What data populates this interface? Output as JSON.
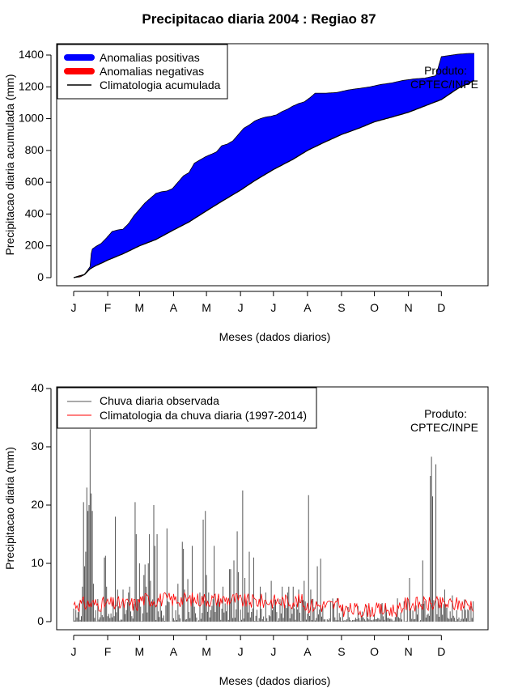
{
  "title": "Precipitacao diaria 2004 : Regiao 87",
  "chart_data": [
    {
      "type": "area",
      "ylabel": "Precipitacao diaria acumulada (mm)",
      "xlabel": "Meses (dados diarios)",
      "ylim": [
        0,
        1400
      ],
      "yticks": [
        0,
        200,
        400,
        600,
        800,
        1000,
        1200,
        1400
      ],
      "xticks": [
        "J",
        "F",
        "M",
        "A",
        "M",
        "J",
        "J",
        "A",
        "S",
        "O",
        "N",
        "D"
      ],
      "xtick_days": [
        0,
        31,
        60,
        91,
        121,
        152,
        182,
        213,
        244,
        274,
        305,
        335
      ],
      "legend": {
        "position": "top-left",
        "items": [
          "Anomalias positivas",
          "Anomalias negativas",
          "Climatologia acumulada"
        ]
      },
      "colors": {
        "positive": "#0000ff",
        "negative": "#ff0000",
        "clim": "#000000"
      },
      "annotation": [
        "Produto:",
        "CPTEC/INPE"
      ],
      "climatology_accumulated": {
        "days": [
          0,
          10,
          15,
          20,
          25,
          31,
          45,
          60,
          75,
          91,
          105,
          121,
          135,
          152,
          165,
          182,
          200,
          213,
          228,
          244,
          260,
          274,
          290,
          305,
          320,
          335,
          350,
          365
        ],
        "values": [
          0,
          20,
          55,
          75,
          90,
          110,
          150,
          200,
          240,
          300,
          350,
          420,
          480,
          550,
          610,
          680,
          745,
          800,
          850,
          900,
          940,
          980,
          1010,
          1040,
          1080,
          1120,
          1190,
          1240
        ]
      },
      "observed_accumulated": {
        "days": [
          0,
          6,
          9,
          12,
          15,
          16,
          17,
          20,
          25,
          30,
          35,
          40,
          45,
          50,
          55,
          60,
          65,
          70,
          75,
          80,
          85,
          90,
          95,
          100,
          105,
          110,
          115,
          120,
          125,
          130,
          135,
          140,
          145,
          150,
          155,
          160,
          165,
          170,
          175,
          180,
          185,
          190,
          195,
          200,
          205,
          210,
          215,
          220,
          225,
          230,
          240,
          250,
          260,
          270,
          280,
          290,
          300,
          310,
          320,
          330,
          335,
          340,
          345,
          350,
          360,
          365
        ],
        "values": [
          0,
          5,
          15,
          40,
          70,
          150,
          180,
          195,
          215,
          250,
          290,
          300,
          305,
          340,
          390,
          430,
          470,
          500,
          530,
          540,
          545,
          560,
          600,
          640,
          660,
          720,
          740,
          760,
          775,
          790,
          830,
          840,
          860,
          900,
          940,
          960,
          985,
          1000,
          1010,
          1015,
          1025,
          1045,
          1060,
          1080,
          1095,
          1105,
          1130,
          1160,
          1160,
          1160,
          1165,
          1180,
          1190,
          1200,
          1215,
          1225,
          1240,
          1250,
          1255,
          1270,
          1390,
          1395,
          1400,
          1405,
          1410,
          1410
        ]
      }
    },
    {
      "type": "bar",
      "ylabel": "Precipitacao diaria (mm)",
      "xlabel": "Meses (dados diarios)",
      "ylim": [
        0,
        40
      ],
      "yticks": [
        0,
        10,
        20,
        30,
        40
      ],
      "xticks": [
        "J",
        "F",
        "M",
        "A",
        "M",
        "J",
        "J",
        "A",
        "S",
        "O",
        "N",
        "D"
      ],
      "xtick_days": [
        0,
        31,
        60,
        91,
        121,
        152,
        182,
        213,
        244,
        274,
        305,
        335
      ],
      "legend": {
        "position": "top-left",
        "items": [
          "Chuva diaria observada",
          "Climatologia da chuva diaria (1997-2014)"
        ]
      },
      "colors": {
        "observed": "#555555",
        "clim": "#ff0000"
      },
      "annotation": [
        "Produto:",
        "CPTEC/INPE"
      ],
      "observed_daily_peaks": {
        "days": [
          8,
          9,
          10,
          11,
          12,
          13,
          14,
          15,
          16,
          17,
          18,
          28,
          29,
          30,
          38,
          40,
          45,
          50,
          51,
          56,
          57,
          60,
          64,
          65,
          66,
          68,
          69,
          70,
          73,
          74,
          76,
          85,
          95,
          99,
          100,
          101,
          104,
          108,
          115,
          118,
          120,
          121,
          123,
          128,
          136,
          142,
          143,
          146,
          149,
          150,
          154,
          156,
          160,
          164,
          170,
          175,
          180,
          190,
          195,
          196,
          200,
          205,
          210,
          214,
          216,
          222,
          225,
          240,
          250,
          270,
          280,
          295,
          306,
          318,
          325,
          326,
          327,
          330,
          338,
          345
        ],
        "values": [
          6,
          20.5,
          9.5,
          12,
          23,
          19,
          20,
          33,
          22,
          19,
          6.5,
          11,
          11.3,
          6,
          18,
          5.5,
          5.5,
          5,
          6,
          20.5,
          15,
          10,
          8,
          9.8,
          6,
          10,
          15,
          7,
          20,
          13,
          15,
          16,
          6.5,
          13.7,
          12.5,
          5.5,
          7.3,
          13,
          5,
          17.5,
          19,
          8,
          5,
          13,
          6,
          9,
          9,
          10.5,
          15.5,
          8.5,
          22.5,
          7.5,
          12,
          11,
          6,
          5,
          7,
          6,
          5,
          6,
          6,
          5.5,
          7,
          21.7,
          5.5,
          9.5,
          10.8,
          4,
          2.5,
          2,
          3,
          4,
          7.5,
          10.5,
          25,
          28.3,
          21.5,
          27,
          5.5,
          4.5
        ]
      }
    }
  ]
}
